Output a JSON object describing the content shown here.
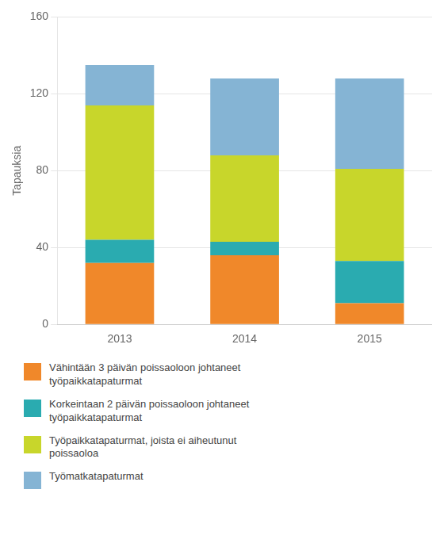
{
  "chart_data": {
    "type": "bar",
    "stacked": true,
    "ylabel": "Tapauksia",
    "categories": [
      "2013",
      "2014",
      "2015"
    ],
    "series": [
      {
        "name": "Vähintään 3 päivän poissaoloon johtaneet\ntyöpaikkatapaturmat",
        "color": "#F0882A",
        "values": [
          32,
          36,
          11
        ]
      },
      {
        "name": "Korkeintaan 2 päivän poissaoloon johtaneet\ntyöpaikkatapaturmat",
        "color": "#2AABB0",
        "values": [
          12,
          7,
          22
        ]
      },
      {
        "name": "Työpaikkatapaturmat, joista ei aiheutunut\npoissaoloa",
        "color": "#C8D62B",
        "values": [
          70,
          45,
          48
        ]
      },
      {
        "name": "Työmatkatapaturmat",
        "color": "#85B4D4",
        "values": [
          21,
          40,
          47
        ]
      }
    ],
    "ylim": [
      0,
      160
    ],
    "yticks": [
      0,
      40,
      80,
      120,
      160
    ],
    "grid": true,
    "legend": "bottom"
  }
}
